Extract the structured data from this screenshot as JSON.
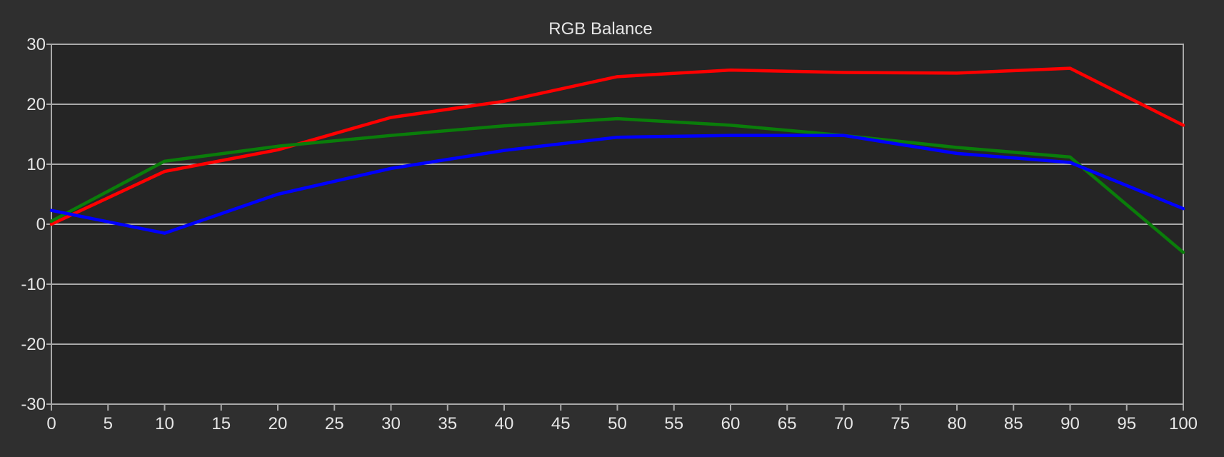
{
  "chart_data": {
    "type": "line",
    "title": "RGB Balance",
    "xlabel": "",
    "ylabel": "",
    "xlim": [
      0,
      100
    ],
    "ylim": [
      -30,
      30
    ],
    "x_ticks": [
      0,
      5,
      10,
      15,
      20,
      25,
      30,
      35,
      40,
      45,
      50,
      55,
      60,
      65,
      70,
      75,
      80,
      85,
      90,
      95,
      100
    ],
    "y_ticks": [
      30,
      20,
      10,
      0,
      -10,
      -20,
      -30
    ],
    "x": [
      0,
      10,
      20,
      30,
      40,
      50,
      60,
      70,
      80,
      90,
      100
    ],
    "grid": true,
    "background": "#252525",
    "page_background": "#2f2f2f",
    "grid_color": "#a9a9a9",
    "series": [
      {
        "color": "#ff0000",
        "values": [
          0,
          8.8,
          12.4,
          17.8,
          20.5,
          24.6,
          25.7,
          25.3,
          25.2,
          26.0,
          16.5
        ]
      },
      {
        "color": "#0a7d0a",
        "values": [
          0.5,
          10.5,
          13.0,
          14.8,
          16.4,
          17.6,
          16.5,
          14.8,
          12.8,
          11.2,
          -4.7
        ]
      },
      {
        "color": "#0000ff",
        "values": [
          2.3,
          -1.5,
          5.0,
          9.3,
          12.3,
          14.5,
          14.8,
          14.8,
          11.8,
          10.3,
          2.6
        ]
      }
    ]
  }
}
